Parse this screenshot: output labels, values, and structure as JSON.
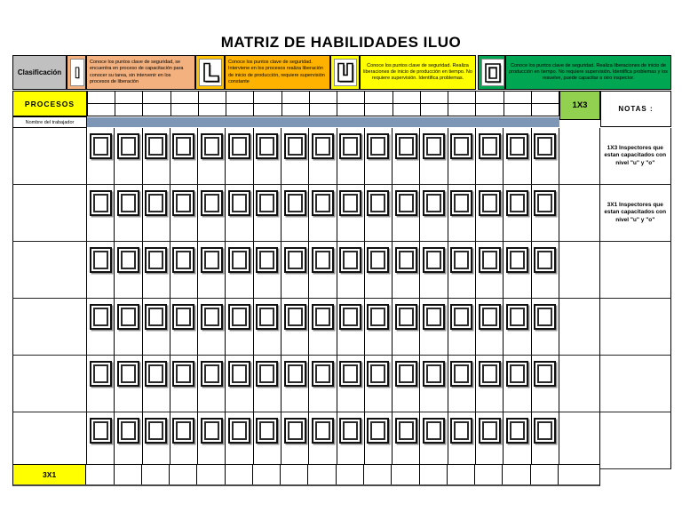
{
  "title": "MATRIZ DE HABILIDADES ILUO",
  "legend": {
    "classification_label": "Clasificación",
    "items": [
      {
        "symbol": "I",
        "frame_color": "#f2b17e",
        "text_bg": "#f2b17e",
        "description": "Conoce los puntos clave de seguridad, se encuentra en proceso de capacitación para conocer su tarea, sin intervenir en los procesos de liberación"
      },
      {
        "symbol": "L",
        "frame_color": "#ffc000",
        "text_bg": "#ffb300",
        "description": "Conoce los puntos clave de seguridad.  Interviene en los procesos  realiza liberación de inicio de producción, requiere supervisión constante"
      },
      {
        "symbol": "U",
        "frame_color": "#ffff00",
        "text_bg": "#ffff00",
        "description": "Conoce los puntos clave de seguridad.  Realiza liberaciones de inicio de producción en tiempo. No requiere supervisión. Identifica problemas."
      },
      {
        "symbol": "O",
        "frame_color": "#00a651",
        "text_bg": "#00a651",
        "description": "Conoce los puntos clave de seguridad.  Realiza liberaciones de inicio de producción en tiempo. No requiere supervisión. Identifica problemas y los resuelve, puede capacitar a otro inspector."
      }
    ]
  },
  "table": {
    "procesos_label": "PROCESOS",
    "worker_col_label": "Nombre del trabajador",
    "badge_1x3": "1X3",
    "notas_label": "NOTAS :",
    "bottom_label": "3X1",
    "columns": 17,
    "worker_rows": 6,
    "cell_symbol": "O",
    "notes": [
      "1X3 Inspectores que estan capacitados con nivel \"u\" y \"o\"",
      "3X1 Inspectores que estan capacitados con nivel \"u\" y \"o\""
    ]
  },
  "colors": {
    "classification_bg": "#c0c0c0",
    "procesos_bg": "#ffff00",
    "badge_bg": "#92d050",
    "band_bg": "#7d96b5",
    "bottom_label_bg": "#ffff00"
  }
}
